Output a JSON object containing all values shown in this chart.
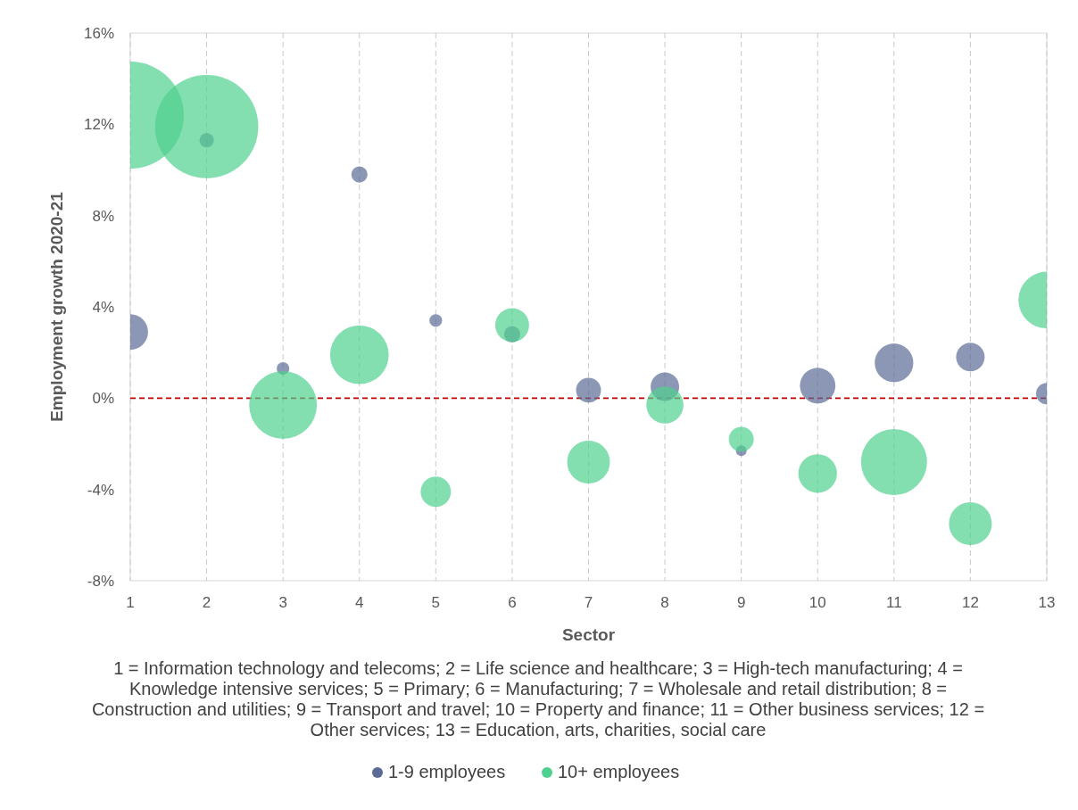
{
  "chart_data": {
    "type": "bubble",
    "xlabel": "Sector",
    "ylabel": "Employment growth 2020-21",
    "xlim": [
      1,
      13
    ],
    "xticks": [
      1,
      2,
      3,
      4,
      5,
      6,
      7,
      8,
      9,
      10,
      11,
      12,
      13
    ],
    "ylim": [
      -8,
      16
    ],
    "yticks": [
      {
        "value": -8,
        "label": "-8%"
      },
      {
        "value": -4,
        "label": "-4%"
      },
      {
        "value": 0,
        "label": "0%"
      },
      {
        "value": 4,
        "label": "4%"
      },
      {
        "value": 8,
        "label": "8%"
      },
      {
        "value": 12,
        "label": "12%"
      },
      {
        "value": 16,
        "label": "16%"
      }
    ],
    "grid": "x",
    "legend": "bottom",
    "ref_lines": [
      {
        "axis": "y",
        "value": 0,
        "color": "#c00000",
        "line_style": "dashed"
      }
    ],
    "annotations": [
      "1 = Information technology and telecoms; 2 = Life science and healthcare; 3 = High-tech manufacturing; 4 = Knowledge intensive services; 5 = Primary; 6 = Manufacturing; 7 = Wholesale and retail distribution; 8 = Construction and utilities; 9 = Transport and travel; 10 = Property and finance; 11 = Other business services; 12 = Other services; 13 = Education, arts, charities, social care"
    ],
    "series": [
      {
        "name": "1-9 employees",
        "color": "#5b6b96",
        "x": [
          1,
          2,
          3,
          4,
          5,
          6,
          7,
          8,
          9,
          10,
          11,
          12,
          13
        ],
        "values": [
          2.9,
          11.3,
          1.3,
          9.8,
          3.4,
          2.8,
          0.35,
          0.5,
          -2.3,
          0.55,
          1.55,
          1.8,
          0.2
        ],
        "sizes": [
          0.11,
          0.018,
          0.014,
          0.023,
          0.014,
          0.023,
          0.054,
          0.071,
          0.01,
          0.11,
          0.13,
          0.071,
          0.04
        ]
      },
      {
        "name": "10+ employees",
        "color": "#4fd08f",
        "x": [
          1,
          2,
          3,
          4,
          5,
          6,
          7,
          8,
          9,
          10,
          11,
          12,
          13
        ],
        "values": [
          12.4,
          11.9,
          -0.3,
          1.9,
          -4.1,
          3.2,
          -2.8,
          -0.3,
          -1.8,
          -3.3,
          -2.8,
          -5.5,
          4.3
        ],
        "sizes": [
          1,
          0.93,
          0.4,
          0.3,
          0.08,
          0.1,
          0.16,
          0.12,
          0.054,
          0.13,
          0.38,
          0.16,
          0.28
        ]
      }
    ]
  }
}
